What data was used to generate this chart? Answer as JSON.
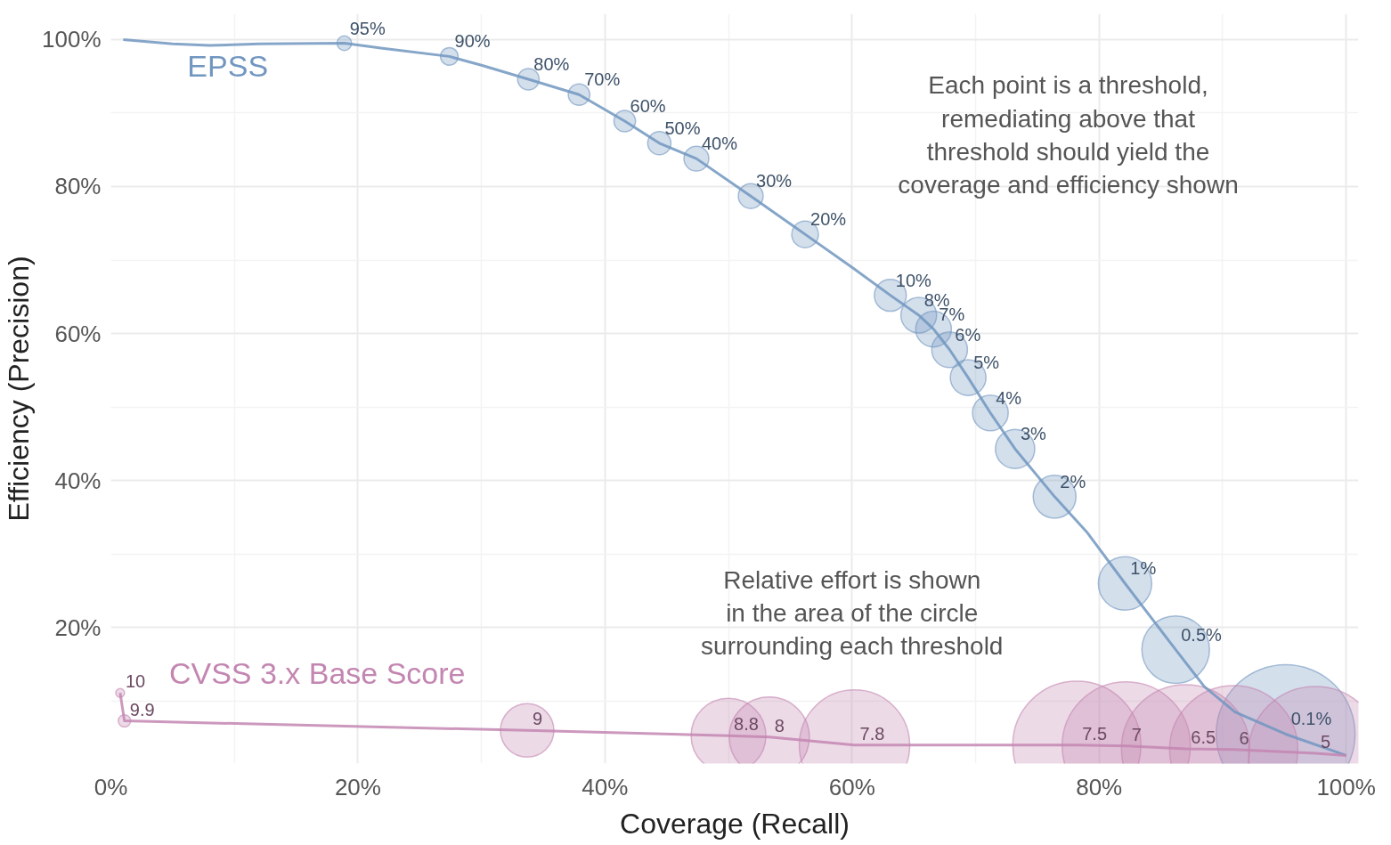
{
  "chart_data": {
    "type": "line",
    "xlabel": "Coverage (Recall)",
    "ylabel": "Efficiency (Precision)",
    "xlim": [
      0,
      101
    ],
    "ylim": [
      1.5,
      103.5
    ],
    "xticks": [
      {
        "value": 0,
        "label": "0%"
      },
      {
        "value": 20,
        "label": "20%"
      },
      {
        "value": 40,
        "label": "40%"
      },
      {
        "value": 60,
        "label": "60%"
      },
      {
        "value": 80,
        "label": "80%"
      },
      {
        "value": 100,
        "label": "100%"
      }
    ],
    "yticks": [
      {
        "value": 20,
        "label": "20%"
      },
      {
        "value": 40,
        "label": "40%"
      },
      {
        "value": 60,
        "label": "60%"
      },
      {
        "value": 80,
        "label": "80%"
      },
      {
        "value": 100,
        "label": "100%"
      }
    ],
    "grid": true,
    "line_style": "solid",
    "series": [
      {
        "name": "EPSS",
        "color": "#7196c0",
        "x": [
          1.0,
          5,
          8,
          12,
          18.9,
          22,
          27.4,
          30,
          33.8,
          37.9,
          41.6,
          44.4,
          47.4,
          51.8,
          56.2,
          60,
          63.1,
          65.4,
          66.6,
          67.9,
          69.4,
          71.2,
          73.2,
          76.4,
          79,
          82.1,
          86.2,
          88.5,
          91,
          95.1,
          100
        ],
        "values": [
          100,
          99.4,
          99.2,
          99.4,
          99.5,
          98.8,
          97.7,
          96.5,
          94.6,
          92.5,
          88.9,
          85.9,
          83.8,
          78.7,
          73.5,
          69,
          65.2,
          62.5,
          60.6,
          57.8,
          54.0,
          49.2,
          44.3,
          37.8,
          33,
          26.0,
          17.0,
          12,
          8.5,
          5.5,
          2.6
        ]
      },
      {
        "type": "bubble",
        "color": "#7196c0",
        "x": [
          18.9,
          27.4,
          33.8,
          37.9,
          41.6,
          44.4,
          47.4,
          51.8,
          56.2,
          63.1,
          65.4,
          66.6,
          67.9,
          69.4,
          71.2,
          73.2,
          76.4,
          82.1,
          86.2,
          95.1
        ],
        "values": [
          99.5,
          97.7,
          94.6,
          92.5,
          88.9,
          85.9,
          83.8,
          78.7,
          73.5,
          65.2,
          62.5,
          60.6,
          57.8,
          54.0,
          49.2,
          44.3,
          37.8,
          26.0,
          17.0,
          5.5
        ],
        "sizes": [
          0.011,
          0.016,
          0.024,
          0.024,
          0.024,
          0.028,
          0.032,
          0.032,
          0.037,
          0.053,
          0.066,
          0.066,
          0.066,
          0.066,
          0.066,
          0.08,
          0.095,
          0.148,
          0.237,
          1
        ]
      },
      {
        "name": "CVSS 3.x Base Score",
        "color": "#c386b1",
        "x": [
          0.75,
          1.1,
          33.7,
          50.0,
          53.3,
          60.2,
          78.2,
          82.2,
          87.0,
          90.9,
          97.5,
          100
        ],
        "values": [
          11.1,
          7.3,
          6.0,
          5.3,
          5.1,
          4.0,
          4.0,
          3.9,
          3.5,
          3.4,
          2.9,
          2.6
        ]
      },
      {
        "type": "bubble",
        "color": "#c386b1",
        "x": [
          0.75,
          1.1,
          33.7,
          50.0,
          53.3,
          60.2,
          78.2,
          82.2,
          87.0,
          90.9,
          97.5
        ],
        "values": [
          11.1,
          7.3,
          6.0,
          5.3,
          5.1,
          4.0,
          4.0,
          3.9,
          3.5,
          3.4,
          2.9
        ],
        "sizes": [
          0.004,
          0.008,
          0.148,
          0.29,
          0.333,
          0.632,
          0.852,
          0.852,
          0.852,
          0.852,
          0.925
        ]
      }
    ],
    "annotations": [
      "Each point is a threshold,\nremediating above that\nthreshold should yield the\ncoverage and efficiency shown",
      "Relative effort is shown\nin the area of the circle\nsurrounding each threshold",
      {
        "text": "95%",
        "x": 18.9,
        "y": 99.5
      },
      {
        "text": "90%",
        "x": 27.4,
        "y": 97.7
      },
      {
        "text": "80%",
        "x": 33.8,
        "y": 94.6
      },
      {
        "text": "70%",
        "x": 37.9,
        "y": 92.5
      },
      {
        "text": "60%",
        "x": 41.6,
        "y": 88.9
      },
      {
        "text": "50%",
        "x": 44.4,
        "y": 85.9
      },
      {
        "text": "40%",
        "x": 47.4,
        "y": 83.8
      },
      {
        "text": "30%",
        "x": 51.8,
        "y": 78.7
      },
      {
        "text": "20%",
        "x": 56.2,
        "y": 73.5
      },
      {
        "text": "10%",
        "x": 63.1,
        "y": 65.2
      },
      {
        "text": "8%",
        "x": 65.4,
        "y": 62.5
      },
      {
        "text": "7%",
        "x": 66.6,
        "y": 60.6
      },
      {
        "text": "6%",
        "x": 67.9,
        "y": 57.8
      },
      {
        "text": "5%",
        "x": 69.4,
        "y": 54.0
      },
      {
        "text": "4%",
        "x": 71.2,
        "y": 49.2
      },
      {
        "text": "3%",
        "x": 73.2,
        "y": 44.3
      },
      {
        "text": "2%",
        "x": 76.4,
        "y": 37.8
      },
      {
        "text": "1%",
        "x": 82.1,
        "y": 26.0
      },
      {
        "text": "0.5%",
        "x": 86.2,
        "y": 17.0
      },
      {
        "text": "0.1%",
        "x": 95.1,
        "y": 5.5
      },
      {
        "text": "10",
        "x": 0.75,
        "y": 11.1
      },
      {
        "text": "9.9",
        "x": 1.1,
        "y": 7.3
      },
      {
        "text": "9",
        "x": 33.7,
        "y": 6.0
      },
      {
        "text": "8.8",
        "x": 50.0,
        "y": 5.3
      },
      {
        "text": "8",
        "x": 53.3,
        "y": 5.1
      },
      {
        "text": "7.8",
        "x": 60.2,
        "y": 4.0
      },
      {
        "text": "7.5",
        "x": 78.2,
        "y": 4.0
      },
      {
        "text": "7",
        "x": 82.2,
        "y": 3.9
      },
      {
        "text": "6.5",
        "x": 87.0,
        "y": 3.5
      },
      {
        "text": "6",
        "x": 90.9,
        "y": 3.4
      },
      {
        "text": "5",
        "x": 97.5,
        "y": 2.9
      }
    ]
  }
}
